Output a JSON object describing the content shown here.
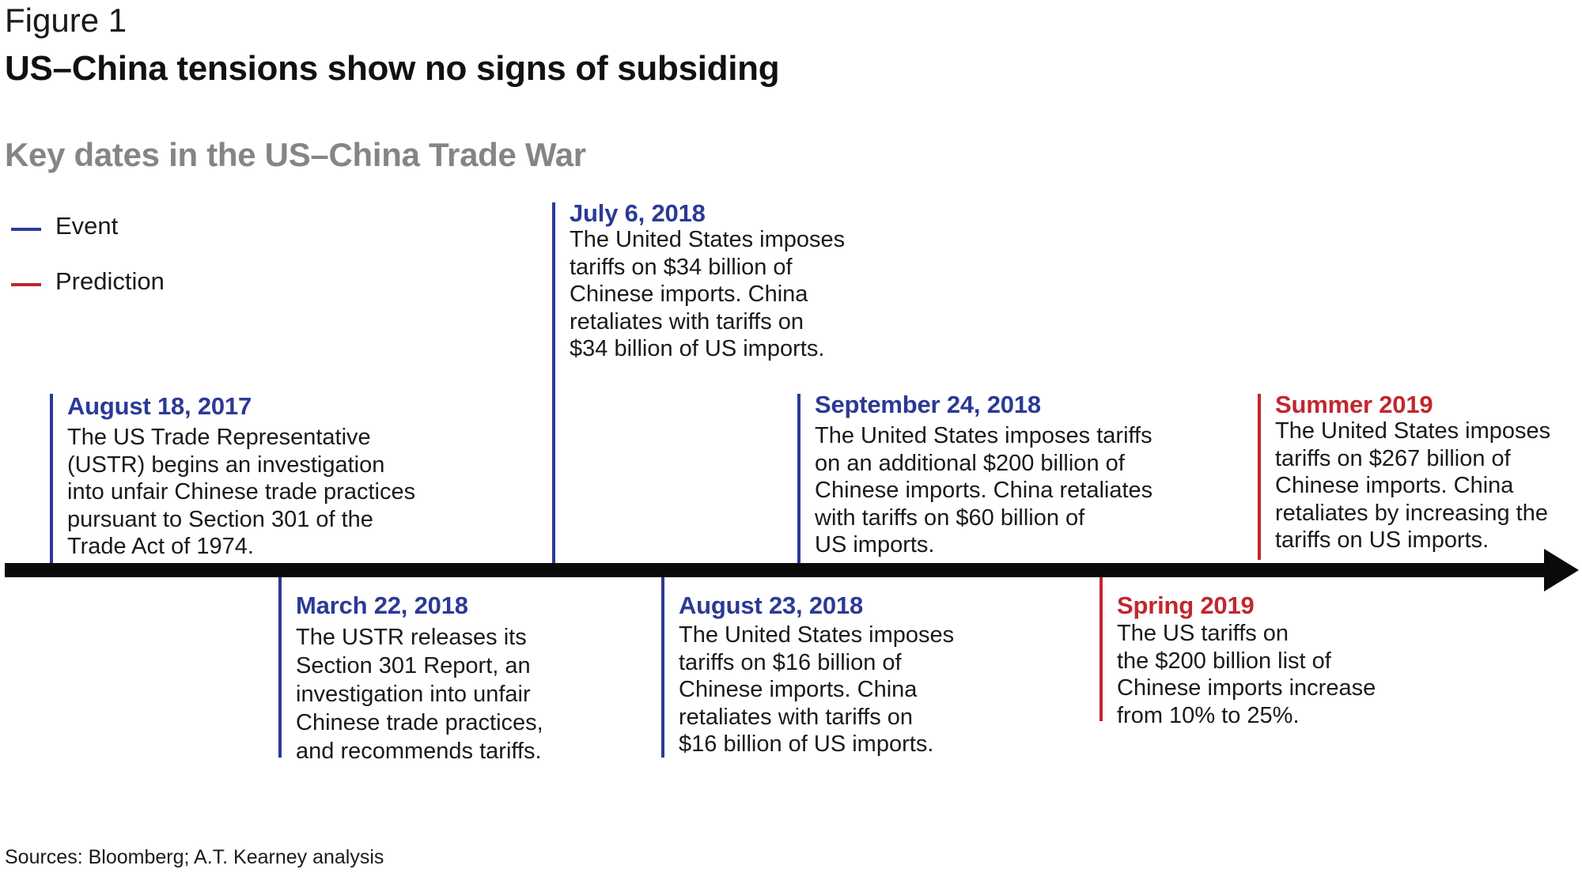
{
  "figure_label": "Figure 1",
  "title": "US–China tensions show no signs of subsiding",
  "subtitle": "Key dates in the US–China Trade War",
  "legend": {
    "event": {
      "label": "Event",
      "color": "#2b3a96"
    },
    "prediction": {
      "label": "Prediction",
      "color": "#c1272d"
    }
  },
  "timeline": [
    {
      "date": "August 18, 2017",
      "kind": "event",
      "description": "The US Trade Representative\n(USTR) begins an investigation\ninto unfair Chinese trade practices\npursuant to Section 301 of the\nTrade Act of 1974."
    },
    {
      "date": "March 22, 2018",
      "kind": "event",
      "description": "The USTR releases its\nSection 301 Report, an\ninvestigation into unfair\nChinese trade practices,\nand recommends tariffs."
    },
    {
      "date": "July 6, 2018",
      "kind": "event",
      "description": "The United States imposes\ntariffs on $34 billion of\nChinese imports. China\nretaliates with tariffs on\n$34 billion of US imports."
    },
    {
      "date": "August 23, 2018",
      "kind": "event",
      "description": "The United States imposes\ntariffs on $16 billion of\nChinese imports. China\nretaliates with tariffs on\n$16 billion of US imports."
    },
    {
      "date": "September 24, 2018",
      "kind": "event",
      "description": "The United States imposes tariffs\non an additional $200 billion of\nChinese imports. China retaliates\nwith tariffs on $60 billion of\nUS imports."
    },
    {
      "date": "Spring 2019",
      "kind": "prediction",
      "description": "The US tariffs on\nthe $200 billion list of\nChinese imports increase\nfrom 10% to 25%."
    },
    {
      "date": "Summer 2019",
      "kind": "prediction",
      "description": "The United States imposes\ntariffs on $267 billion of\nChinese imports. China\nretaliates by increasing the\ntariffs on US imports."
    }
  ],
  "source": "Sources: Bloomberg; A.T. Kearney analysis"
}
